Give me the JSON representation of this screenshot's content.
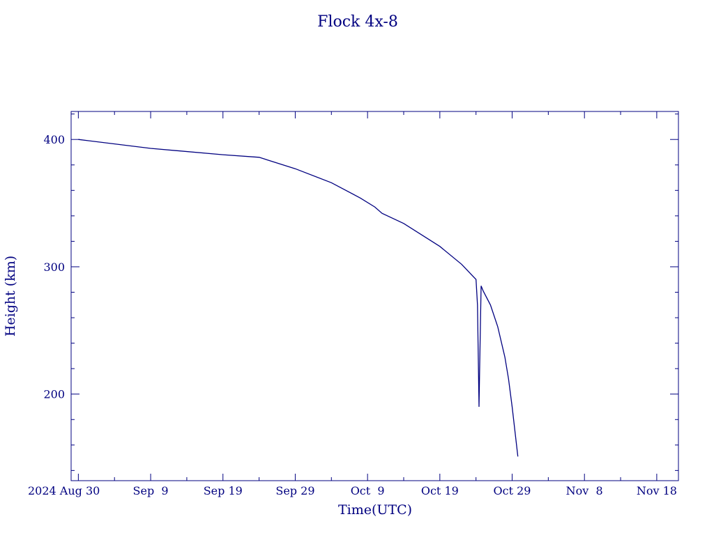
{
  "chart_data": {
    "type": "line",
    "title": "Flock 4x-8",
    "xlabel": "Time(UTC)",
    "ylabel": "Height (km)",
    "color": "#000080",
    "grid": false,
    "xlim": [
      "2024-08-29",
      "2024-11-21"
    ],
    "ylim": [
      132,
      422
    ],
    "x_ticks": [
      {
        "date": "2024-08-30",
        "label": "2024 Aug 30"
      },
      {
        "date": "2024-09-09",
        "label": "Sep  9"
      },
      {
        "date": "2024-09-19",
        "label": "Sep 19"
      },
      {
        "date": "2024-09-29",
        "label": "Sep 29"
      },
      {
        "date": "2024-10-09",
        "label": "Oct  9"
      },
      {
        "date": "2024-10-19",
        "label": "Oct 19"
      },
      {
        "date": "2024-10-29",
        "label": "Oct 29"
      },
      {
        "date": "2024-11-08",
        "label": "Nov  8"
      },
      {
        "date": "2024-11-18",
        "label": "Nov 18"
      }
    ],
    "y_ticks": [
      {
        "value": 200,
        "label": "200"
      },
      {
        "value": 300,
        "label": "300"
      },
      {
        "value": 400,
        "label": "400"
      }
    ],
    "series": [
      {
        "x": [
          "2024-08-30 00:00",
          "2024-09-09 00:00",
          "2024-09-19 00:00",
          "2024-09-24 00:00",
          "2024-09-29 00:00",
          "2024-10-04 00:00",
          "2024-10-08 00:00",
          "2024-10-10 00:00",
          "2024-10-11 00:00",
          "2024-10-14 00:00",
          "2024-10-19 00:00",
          "2024-10-22 00:00",
          "2024-10-24 00:00",
          "2024-10-24 05:00",
          "2024-10-24 10:00",
          "2024-10-24 12:00",
          "2024-10-24 17:00",
          "2024-10-25 00:00",
          "2024-10-26 00:00",
          "2024-10-27 00:00",
          "2024-10-28 00:00",
          "2024-10-28 12:00",
          "2024-10-29 00:00",
          "2024-10-29 19:00"
        ],
        "y": [
          400,
          393,
          388,
          386,
          377,
          366,
          354,
          347,
          342,
          334,
          316,
          302,
          290,
          270,
          190,
          220,
          285,
          281,
          270,
          253,
          229,
          212,
          190,
          151
        ]
      }
    ]
  }
}
